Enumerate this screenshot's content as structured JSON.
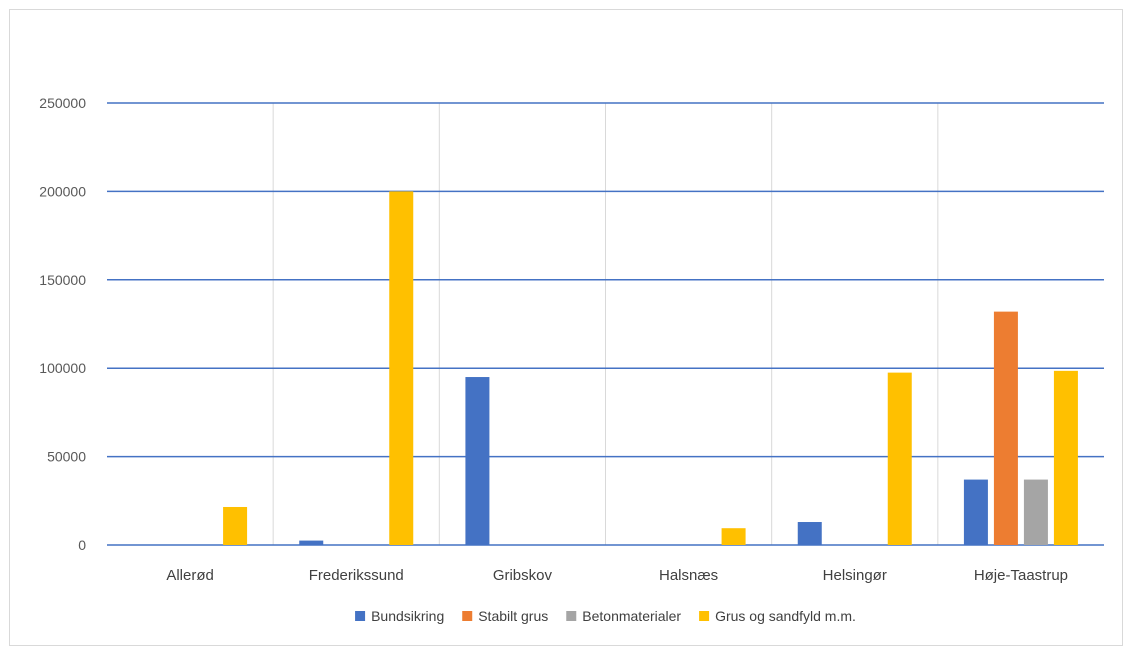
{
  "chart_data": {
    "type": "bar",
    "title": "",
    "xlabel": "",
    "ylabel": "",
    "ylim": [
      0,
      250000
    ],
    "yticks": [
      0,
      50000,
      100000,
      150000,
      200000,
      250000
    ],
    "grid": true,
    "legend_position": "bottom",
    "categories": [
      "Allerød",
      "Frederikssund",
      "Gribskov",
      "Halsnæs",
      "Helsingør",
      "Høje-Taastrup"
    ],
    "series": [
      {
        "name": "Bundsikring",
        "color": "#4472c4",
        "values": [
          0,
          2500,
          95000,
          0,
          13000,
          37000
        ]
      },
      {
        "name": "Stabilt grus",
        "color": "#ed7d31",
        "values": [
          0,
          0,
          0,
          0,
          0,
          132000
        ]
      },
      {
        "name": "Betonmaterialer",
        "color": "#a5a5a5",
        "values": [
          0,
          0,
          0,
          0,
          0,
          37000
        ]
      },
      {
        "name": "Grus og sandfyld m.m.",
        "color": "#ffc000",
        "values": [
          21500,
          200000,
          0,
          9500,
          97500,
          98500
        ]
      }
    ]
  }
}
